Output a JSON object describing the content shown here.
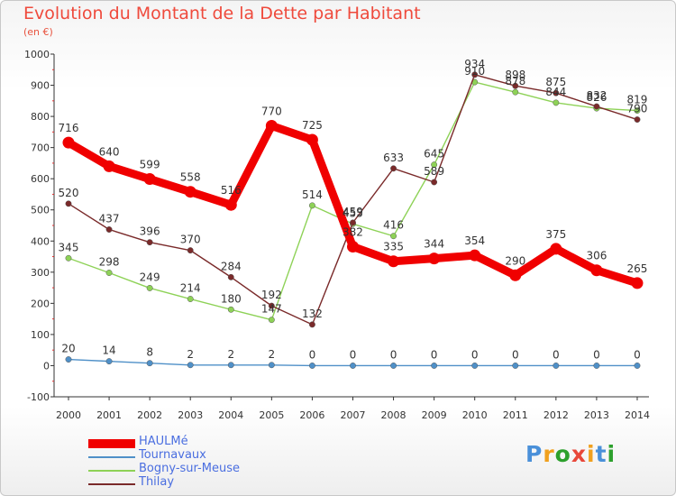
{
  "header": {
    "title": "Evolution du Montant de la Dette par Habitant",
    "unit": "(en €)"
  },
  "logo": {
    "letters": [
      "P",
      "r",
      "o",
      "x",
      "i",
      "t",
      "i"
    ],
    "colors": [
      "#4a90d9",
      "#f0a01e",
      "#2ca02c",
      "#e8473a",
      "#f0a01e",
      "#4a90d9",
      "#2ca02c"
    ]
  },
  "chart_data": {
    "type": "line",
    "title": "Evolution du Montant de la Dette par Habitant",
    "ylabel": "(en €)",
    "xlabel": "",
    "x": [
      "2000",
      "2001",
      "2002",
      "2003",
      "2004",
      "2005",
      "2006",
      "2007",
      "2008",
      "2009",
      "2010",
      "2011",
      "2012",
      "2013",
      "2014"
    ],
    "ylim": [
      -100,
      1000
    ],
    "yticks": [
      -100,
      0,
      100,
      200,
      300,
      400,
      500,
      600,
      700,
      800,
      900,
      1000
    ],
    "grid": false,
    "legend": "bottom-left",
    "series": [
      {
        "name": "HAULMé",
        "color": "#f00000",
        "values": [
          716,
          640,
          599,
          558,
          516,
          770,
          725,
          382,
          335,
          344,
          354,
          290,
          375,
          306,
          265
        ]
      },
      {
        "name": "Tournavaux",
        "color": "#4f90c8",
        "values": [
          20,
          14,
          8,
          2,
          2,
          2,
          0,
          0,
          0,
          0,
          0,
          0,
          0,
          0,
          0
        ]
      },
      {
        "name": "Bogny-sur-Meuse",
        "color": "#8ed257",
        "values": [
          345,
          298,
          249,
          214,
          180,
          147,
          514,
          455,
          416,
          645,
          910,
          878,
          844,
          826,
          819
        ]
      },
      {
        "name": "Thilay",
        "color": "#7a2a2a",
        "values": [
          520,
          437,
          396,
          370,
          284,
          192,
          132,
          459,
          633,
          589,
          934,
          898,
          875,
          832,
          790
        ]
      }
    ]
  }
}
